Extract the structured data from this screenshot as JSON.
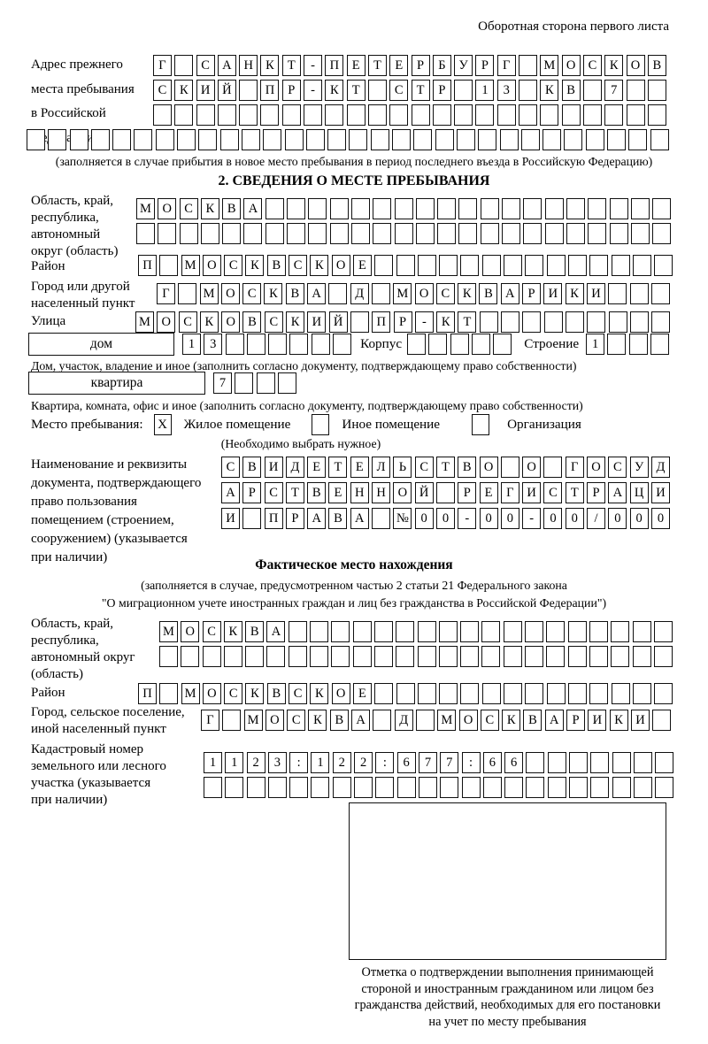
{
  "page": {
    "header_note": "Оборотная сторона первого листа"
  },
  "prev_address": {
    "label": "Адрес прежнего\nместа пребывания\nв Российской\nФедерации",
    "rows": [
      {
        "text": "Г САНКТ-ПЕТЕРБУРГ МОСКОВ",
        "len": 24
      },
      {
        "text": "СКИЙ ПР-КТ СТР 13 КВ 7",
        "len": 24
      },
      {
        "text": "",
        "len": 24
      },
      {
        "text": "",
        "len": 30
      }
    ],
    "note": "(заполняется в случае прибытия в новое место пребывания в период последнего въезда в Российскую Федерацию)"
  },
  "section2": {
    "title": "2. СВЕДЕНИЯ О МЕСТЕ ПРЕБЫВАНИЯ",
    "oblast": {
      "label": "Область, край,\nреспублика,\nавтономный\nокруг (область)",
      "rows": [
        {
          "text": "МОСКВА",
          "len": 25
        },
        {
          "text": "",
          "len": 25
        }
      ]
    },
    "raion": {
      "label": "Район",
      "row": {
        "text": "П МОСКВСКОЕ",
        "len": 25
      }
    },
    "gorod": {
      "label": "Город или другой\nнаселенный пункт",
      "row": {
        "text": "Г МОСКВА Д МОСКВАРИКИ",
        "len": 24
      }
    },
    "ulitsa": {
      "label": "Улица",
      "row": {
        "text": "МОСКОВСКИЙ ПР-КТ",
        "len": 25
      }
    },
    "dom": {
      "box_label": "дом",
      "cells": {
        "text": "13",
        "len": 8
      },
      "korpus_label": "Корпус",
      "korpus_cells": {
        "text": "",
        "len": 5
      },
      "stroenie_label": "Строение",
      "stroenie_cells": {
        "text": "1",
        "len": 4
      },
      "caption": "Дом, участок, владение и иное (заполнить согласно документу, подтверждающему право собственности)"
    },
    "kvartira": {
      "box_label": "квартира",
      "cells": {
        "text": "7",
        "len": 4
      },
      "caption": "Квартира, комната, офис и иное (заполнить согласно документу, подтверждающему право собственности)"
    },
    "mesto": {
      "label": "Место пребывания:",
      "options": [
        {
          "label": "Жилое помещение",
          "mark": "X"
        },
        {
          "label": "Иное помещение",
          "mark": ""
        },
        {
          "label": "Организация",
          "mark": ""
        }
      ],
      "note": "(Необходимо выбрать нужное)"
    },
    "document": {
      "label": "Наименование и реквизиты\nдокумента, подтверждающего\nправо пользования\nпомещением (строением,\nсооружением) (указывается\nпри наличии)",
      "rows": [
        {
          "text": "СВИДЕТЕЛЬСТВО О ГОСУД",
          "len": 21
        },
        {
          "text": "АРСТВЕННОЙ РЕГИСТРАЦИ",
          "len": 21
        },
        {
          "text": "И ПРАВА №00-00-00/000",
          "len": 21
        }
      ]
    }
  },
  "fact": {
    "title": "Фактическое место нахождения",
    "note1": "(заполняется в случае, предусмотренном частью 2 статьи 21 Федерального закона",
    "note2": "\"О миграционном учете иностранных граждан и лиц без гражданства в Российской Федерации\")",
    "oblast": {
      "label": "Область, край,\nреспублика,\nавтономный округ\n(область)",
      "rows": [
        {
          "text": "МОСКВА",
          "len": 24
        },
        {
          "text": "",
          "len": 24
        }
      ]
    },
    "raion": {
      "label": "Район",
      "row": {
        "text": "П МОСКВСКОЕ",
        "len": 25
      }
    },
    "gorod": {
      "label": "Город, сельское поселение,\nиной населенный пункт",
      "row": {
        "text": "Г МОСКВА Д МОСКВАРИКИ",
        "len": 22
      }
    },
    "kadastr": {
      "label": "Кадастровый номер\nземельного или лесного\nучастка (указывается\nпри наличии)",
      "rows": [
        {
          "text": "1123:122:677:66",
          "len": 22
        },
        {
          "text": "",
          "len": 22
        }
      ]
    },
    "stamp_caption": "Отметка о подтверждении выполнения принимающей\nстороной и иностранным гражданином или лицом без\nгражданства действий, необходимых для его постановки\nна учет по месту пребывания"
  }
}
